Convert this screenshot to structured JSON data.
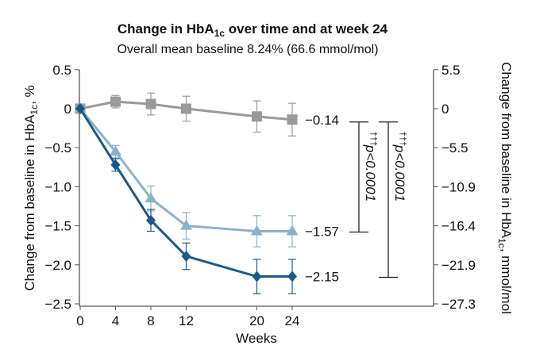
{
  "chart_data": {
    "type": "line",
    "title": "Change in HbA1c over time and at week 24",
    "title_parts": {
      "pre": "Change in HbA",
      "sub": "1c",
      "post": " over time and at week 24"
    },
    "subtitle": "Overall mean baseline 8.24% (66.6 mmol/mol)",
    "xlabel": "Weeks",
    "ylabel": {
      "pre": "Change from baseline in HbA",
      "sub": "1c",
      "post": ", %"
    },
    "ylabel_right": {
      "pre": "Change from baseline in HbA",
      "sub": "1c",
      "post": ", mmol/mol"
    },
    "x": [
      0,
      4,
      8,
      12,
      20,
      24
    ],
    "x_ticks": [
      "0",
      "4",
      "8",
      "12",
      "20",
      "24"
    ],
    "xlim": [
      0,
      24
    ],
    "ylim": [
      -2.5,
      0.5
    ],
    "y_ticks": [
      0.5,
      0,
      -0.5,
      -1.0,
      -1.5,
      -2.0,
      -2.5
    ],
    "y_tick_labels": [
      "0.5",
      "0",
      "-0.5",
      "-1.0",
      "-1.5",
      "-2.0",
      "-2.5"
    ],
    "y_right_tick_labels": [
      "5.5",
      "0",
      "−5.5",
      "−10.9",
      "−16.4",
      "−21.9",
      "−27.3"
    ],
    "grid": false,
    "series": [
      {
        "marker": "square",
        "color": "#9a9a9a",
        "values": [
          0,
          0.09,
          0.06,
          0.0,
          -0.1,
          -0.14
        ],
        "errors": [
          0,
          0.08,
          0.14,
          0.16,
          0.2,
          0.21
        ],
        "end_label": "−0.14"
      },
      {
        "marker": "triangle",
        "color": "#8ab2cf",
        "values": [
          0,
          -0.55,
          -1.15,
          -1.5,
          -1.57,
          -1.57
        ],
        "errors": [
          0,
          0.08,
          0.16,
          0.17,
          0.2,
          0.2
        ],
        "end_label": "−1.57"
      },
      {
        "marker": "diamond",
        "color": "#1a5a8a",
        "values": [
          0,
          -0.72,
          -1.43,
          -1.89,
          -2.15,
          -2.15
        ],
        "errors": [
          0,
          0.08,
          0.14,
          0.17,
          0.22,
          0.22
        ],
        "end_label": "−2.15"
      }
    ],
    "annotations": [
      {
        "from": -0.14,
        "to": -1.57,
        "sup": "†††",
        "text": "p<0.0001"
      },
      {
        "from": -0.14,
        "to": -2.15,
        "sup": "†††",
        "text": "p<0.0001"
      }
    ]
  }
}
